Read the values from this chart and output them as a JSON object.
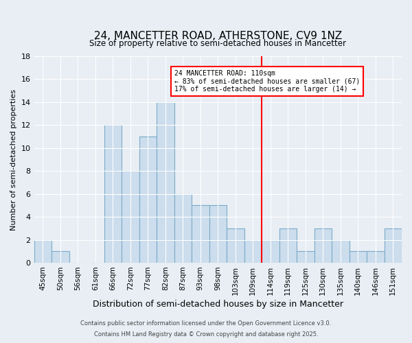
{
  "title1": "24, MANCETTER ROAD, ATHERSTONE, CV9 1NZ",
  "title2": "Size of property relative to semi-detached houses in Mancetter",
  "xlabel": "Distribution of semi-detached houses by size in Mancetter",
  "ylabel": "Number of semi-detached properties",
  "bins": [
    "45sqm",
    "50sqm",
    "56sqm",
    "61sqm",
    "66sqm",
    "72sqm",
    "77sqm",
    "82sqm",
    "87sqm",
    "93sqm",
    "98sqm",
    "103sqm",
    "109sqm",
    "114sqm",
    "119sqm",
    "125sqm",
    "130sqm",
    "135sqm",
    "140sqm",
    "146sqm",
    "151sqm"
  ],
  "values": [
    2,
    1,
    0,
    0,
    12,
    8,
    11,
    14,
    6,
    5,
    5,
    3,
    2,
    2,
    3,
    1,
    3,
    2,
    1,
    1,
    3
  ],
  "bar_color": "#ccdded",
  "bar_edge_color": "#7aaac8",
  "red_line_after_index": 12,
  "annotation_label": "24 MANCETTER ROAD: 110sqm",
  "annotation_line2": "← 83% of semi-detached houses are smaller (67)",
  "annotation_line3": "17% of semi-detached houses are larger (14) →",
  "ylim": [
    0,
    18
  ],
  "yticks": [
    0,
    2,
    4,
    6,
    8,
    10,
    12,
    14,
    16,
    18
  ],
  "background_color": "#e8eef4",
  "grid_color": "#ffffff",
  "footer1": "Contains HM Land Registry data © Crown copyright and database right 2025.",
  "footer2": "Contains public sector information licensed under the Open Government Licence v3.0."
}
